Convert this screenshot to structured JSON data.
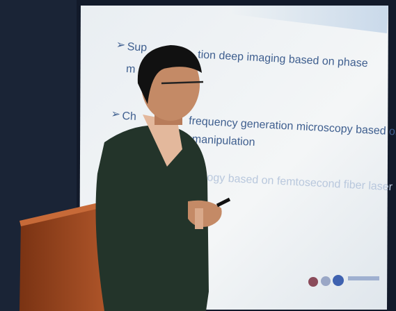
{
  "slide": {
    "lines": [
      "Sup",
      "tion deep imaging based on phase",
      "m",
      "Ch",
      "frequency generation microscopy based on",
      "manipulation",
      "ology based on femtosecond fiber laser"
    ]
  }
}
